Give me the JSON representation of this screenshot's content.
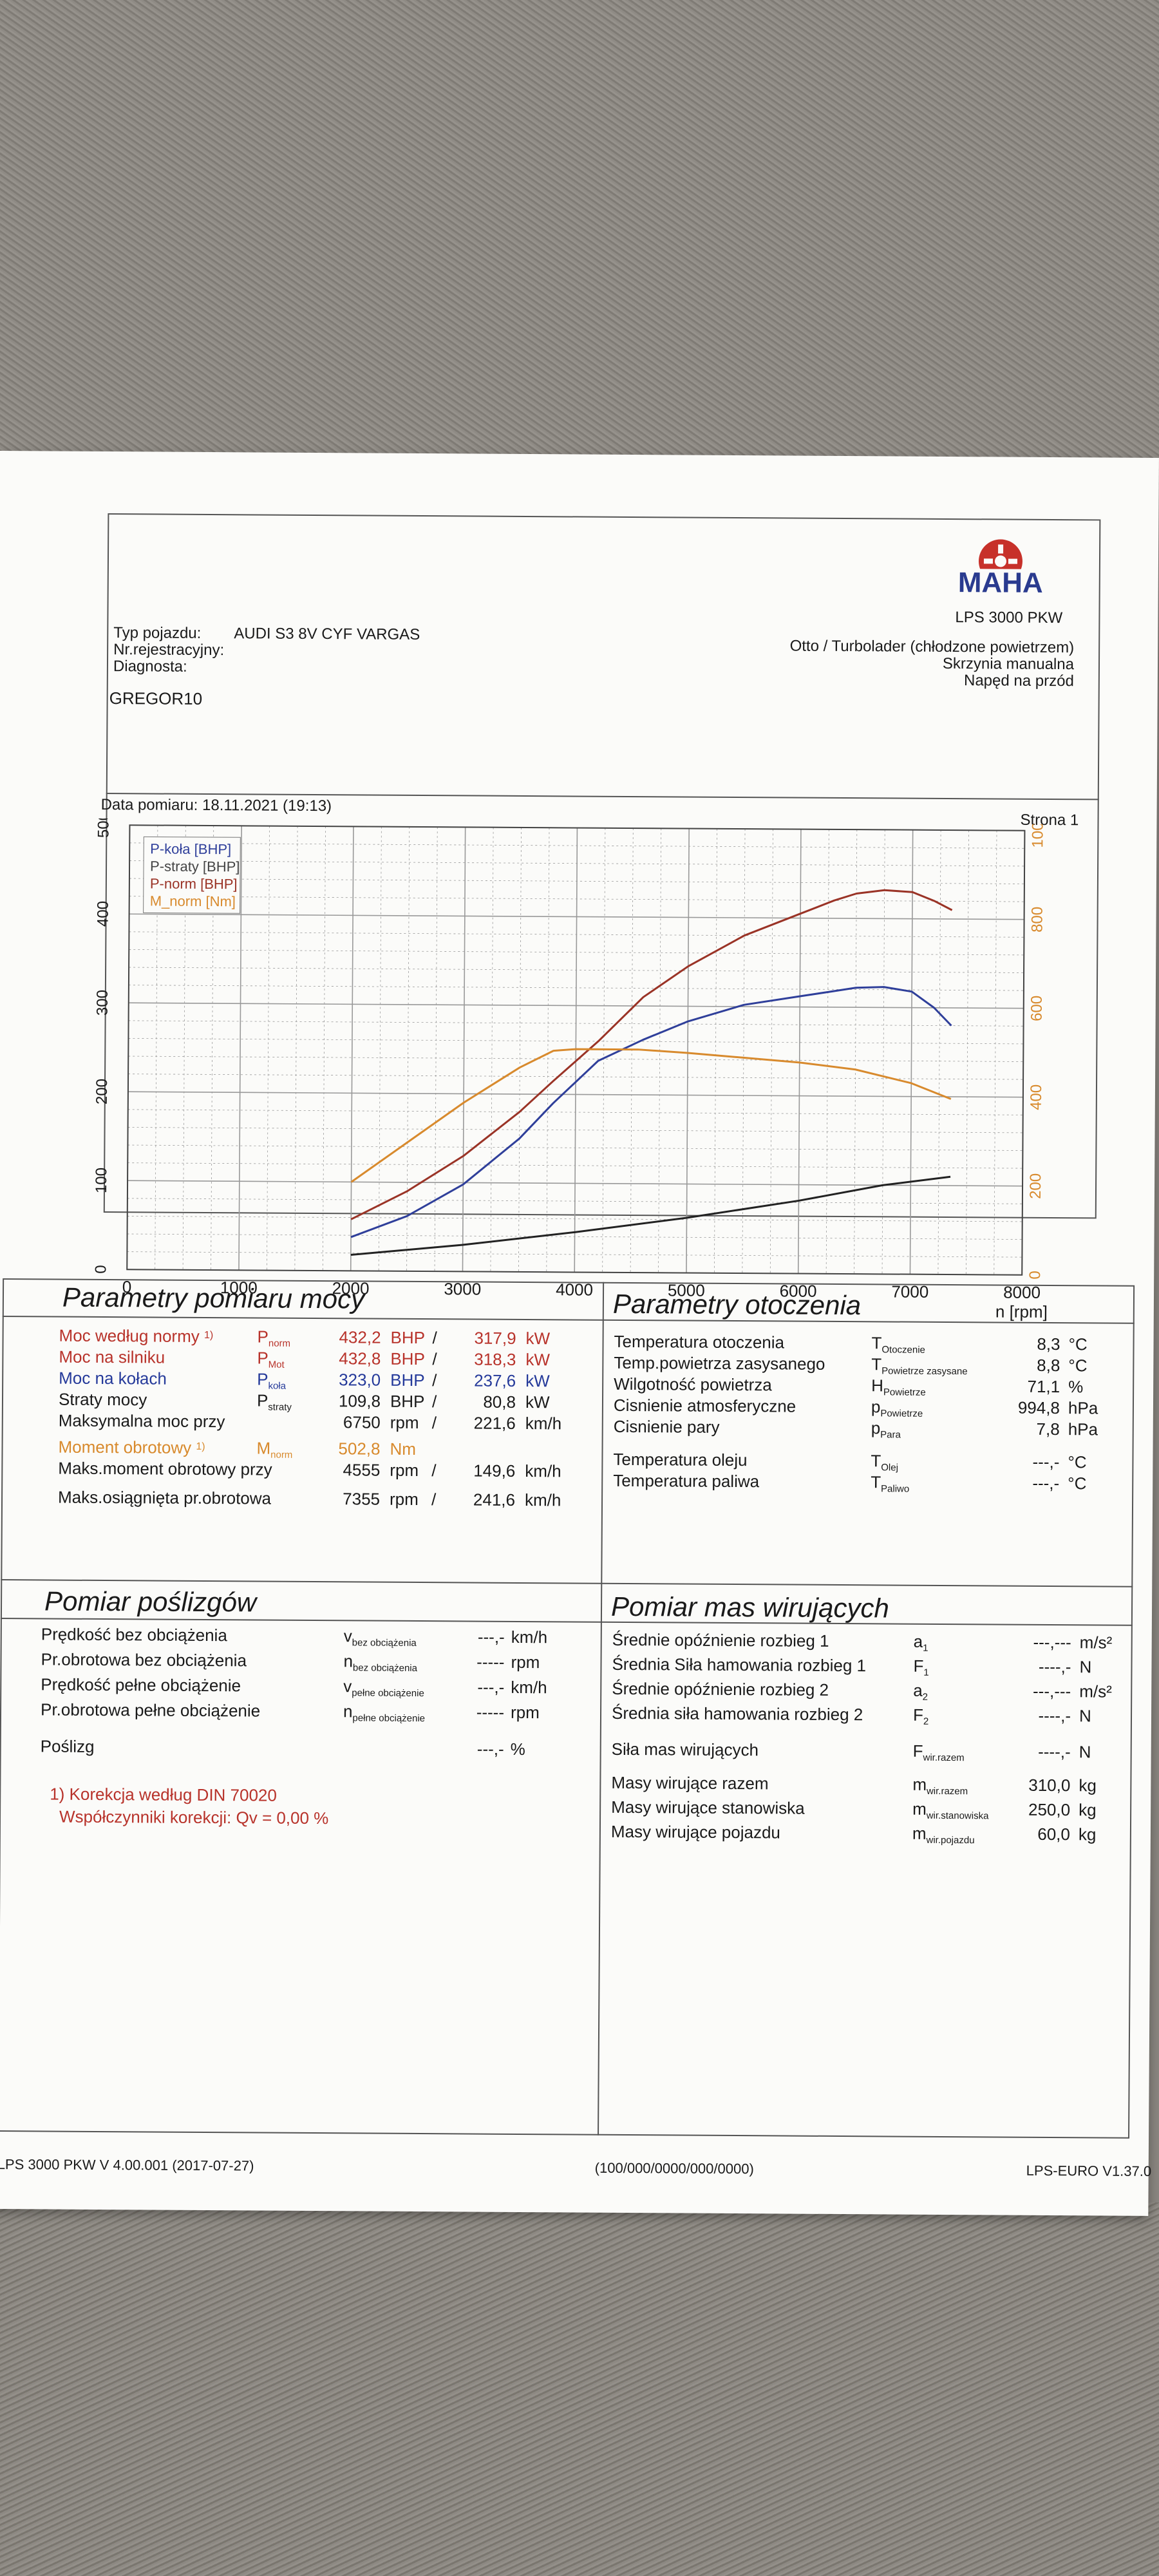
{
  "header": {
    "brand": "MAHA",
    "model": "LPS 3000 PKW",
    "vehicle_type_label": "Typ pojazdu:",
    "vehicle_type_value": "AUDI S3 8V CYF VARGAS",
    "registration_label": "Nr.rejestracyjny:",
    "diagnosis_label": "Diagnosta:",
    "engine_type": "Otto / Turbolader (chłodzone powietrzem)",
    "gearbox": "Skrzynia manualna",
    "drive": "Napęd na przód",
    "operator": "GREGOR10",
    "measurement_date": "Data pomiaru: 18.11.2021 (19:13)",
    "page": "Strona 1"
  },
  "chart_data": {
    "type": "line",
    "xlabel": "n [rpm]",
    "x_ticks": [
      "0",
      "1000",
      "2000",
      "3000",
      "4000",
      "5000",
      "6000",
      "7000",
      "8000"
    ],
    "y_left_ticks": [
      "0",
      "100",
      "200",
      "300",
      "400",
      "500"
    ],
    "y_right_ticks": [
      "0",
      "200",
      "400",
      "600",
      "800",
      "1000"
    ],
    "xlim": [
      0,
      8000
    ],
    "ylim_left": [
      0,
      500
    ],
    "ylim_right": [
      0,
      1000
    ],
    "grid": true,
    "legend_position": "top-left",
    "legend": [
      "P-koła [BHP]",
      "P-straty [BHP]",
      "P-norm [BHP]",
      "M_norm [Nm]"
    ],
    "series": [
      {
        "name": "P-koła [BHP]",
        "color": "#2f3f9a",
        "axis": "left",
        "x": [
          2000,
          2500,
          3000,
          3500,
          3800,
          4200,
          4600,
          5000,
          5500,
          6000,
          6300,
          6500,
          6750,
          7000,
          7200,
          7355
        ],
        "y": [
          38,
          62,
          98,
          150,
          190,
          238,
          262,
          283,
          302,
          312,
          318,
          322,
          323,
          318,
          300,
          280
        ]
      },
      {
        "name": "P-straty [BHP]",
        "color": "#222222",
        "axis": "left",
        "x": [
          2000,
          3000,
          4000,
          5000,
          6000,
          6750,
          7355
        ],
        "y": [
          18,
          30,
          45,
          62,
          82,
          100,
          110
        ]
      },
      {
        "name": "P-norm [BHP]",
        "color": "#9a3326",
        "axis": "left",
        "x": [
          2000,
          2500,
          3000,
          3500,
          3800,
          4200,
          4600,
          5000,
          5500,
          6000,
          6300,
          6500,
          6750,
          7000,
          7200,
          7355
        ],
        "y": [
          58,
          90,
          130,
          180,
          215,
          260,
          310,
          345,
          380,
          405,
          420,
          428,
          432,
          430,
          420,
          410
        ]
      },
      {
        "name": "M_norm [Nm]",
        "color": "#d88a2d",
        "axis": "right",
        "x": [
          2000,
          2500,
          3000,
          3500,
          3800,
          4000,
          4555,
          5000,
          5500,
          6000,
          6500,
          7000,
          7355
        ],
        "y": [
          200,
          290,
          380,
          460,
          498,
          502,
          502,
          495,
          485,
          475,
          460,
          430,
          395
        ]
      }
    ]
  },
  "measurement_params": {
    "title": "Parametry pomiaru mocy",
    "rows": [
      {
        "label": "Moc według normy",
        "note": "1)",
        "sym": "P",
        "sub": "norm",
        "val1": "432,2",
        "unit1": "BHP",
        "sep": "/",
        "val2": "317,9",
        "unit2": "kW",
        "color": "#b8332b"
      },
      {
        "label": "Moc na silniku",
        "note": "",
        "sym": "P",
        "sub": "Mot",
        "val1": "432,8",
        "unit1": "BHP",
        "sep": "/",
        "val2": "318,3",
        "unit2": "kW",
        "color": "#b8332b"
      },
      {
        "label": "Moc na kołach",
        "note": "",
        "sym": "P",
        "sub": "koła",
        "val1": "323,0",
        "unit1": "BHP",
        "sep": "/",
        "val2": "237,6",
        "unit2": "kW",
        "color": "#253a9a"
      },
      {
        "label": "Straty mocy",
        "note": "",
        "sym": "P",
        "sub": "straty",
        "val1": "109,8",
        "unit1": "BHP",
        "sep": "/",
        "val2": "80,8",
        "unit2": "kW",
        "color": "#1a1a1a"
      },
      {
        "label": "Maksymalna moc przy",
        "note": "",
        "sym": "",
        "sub": "",
        "val1": "6750",
        "unit1": "rpm",
        "sep": "/",
        "val2": "221,6",
        "unit2": "km/h",
        "color": "#1a1a1a"
      },
      {
        "label": "Moment obrotowy",
        "note": "1)",
        "sym": "M",
        "sub": "norm",
        "val1": "502,8",
        "unit1": "Nm",
        "sep": "",
        "val2": "",
        "unit2": "",
        "color": "#d88a2d"
      },
      {
        "label": "Maks.moment obrotowy przy",
        "note": "",
        "sym": "",
        "sub": "",
        "val1": "4555",
        "unit1": "rpm",
        "sep": "/",
        "val2": "149,6",
        "unit2": "km/h",
        "color": "#1a1a1a"
      },
      {
        "label": "Maks.osiągnięta pr.obrotowa",
        "note": "",
        "sym": "",
        "sub": "",
        "val1": "7355",
        "unit1": "rpm",
        "sep": "/",
        "val2": "241,6",
        "unit2": "km/h",
        "color": "#1a1a1a"
      }
    ],
    "correction_note": "1) Korekcja według DIN 70020",
    "correction_coeff": "Współczynniki korekcji: Qv = 0,00 %"
  },
  "ambient_params": {
    "title": "Parametry otoczenia",
    "rows": [
      {
        "label": "Temperatura otoczenia",
        "sym": "T",
        "sub": "Otoczenie",
        "val": "8,3",
        "unit": "°C"
      },
      {
        "label": "Temp.powietrza zasysanego",
        "sym": "T",
        "sub": "Powietrze zasysane",
        "val": "8,8",
        "unit": "°C"
      },
      {
        "label": "Wilgotność powietrza",
        "sym": "H",
        "sub": "Powietrze",
        "val": "71,1",
        "unit": "%"
      },
      {
        "label": "Cisnienie atmosferyczne",
        "sym": "p",
        "sub": "Powietrze",
        "val": "994,8",
        "unit": "hPa"
      },
      {
        "label": "Cisnienie pary",
        "sym": "p",
        "sub": "Para",
        "val": "7,8",
        "unit": "hPa"
      },
      {
        "label": "Temperatura oleju",
        "sym": "T",
        "sub": "Olej",
        "val": "---,-",
        "unit": "°C"
      },
      {
        "label": "Temperatura paliwa",
        "sym": "T",
        "sub": "Paliwo",
        "val": "---,-",
        "unit": "°C"
      }
    ]
  },
  "slip": {
    "title": "Pomiar poślizgów",
    "rows": [
      {
        "label": "Prędkość bez obciążenia",
        "sym": "v",
        "sub": "bez obciążenia",
        "val": "---,-",
        "unit": "km/h"
      },
      {
        "label": "Pr.obrotowa bez obciążenia",
        "sym": "n",
        "sub": "bez obciążenia",
        "val": "-----",
        "unit": "rpm"
      },
      {
        "label": "Prędkość pełne obciążenie",
        "sym": "v",
        "sub": "pełne obciążenie",
        "val": "---,-",
        "unit": "km/h"
      },
      {
        "label": "Pr.obrotowa pełne obciążenie",
        "sym": "n",
        "sub": "pełne obciążenie",
        "val": "-----",
        "unit": "rpm"
      },
      {
        "label": "Poślizg",
        "sym": "",
        "sub": "",
        "val": "---,-",
        "unit": "%"
      }
    ]
  },
  "rotating_mass": {
    "title": "Pomiar mas wirujących",
    "rows": [
      {
        "label": "Średnie opóźnienie rozbieg 1",
        "sym": "a",
        "sub": "1",
        "val": "---,---",
        "unit": "m/s²"
      },
      {
        "label": "Średnia Siła hamowania rozbieg 1",
        "sym": "F",
        "sub": "1",
        "val": "----,-",
        "unit": "N"
      },
      {
        "label": "Średnie opóźnienie rozbieg 2",
        "sym": "a",
        "sub": "2",
        "val": "---,---",
        "unit": "m/s²"
      },
      {
        "label": "Średnia siła hamowania rozbieg 2",
        "sym": "F",
        "sub": "2",
        "val": "----,-",
        "unit": "N"
      },
      {
        "label": "Siła mas wirujących",
        "sym": "F",
        "sub": "wir.razem",
        "val": "----,-",
        "unit": "N"
      },
      {
        "label": "Masy wirujące razem",
        "sym": "m",
        "sub": "wir.razem",
        "val": "310,0",
        "unit": "kg"
      },
      {
        "label": "Masy wirujące stanowiska",
        "sym": "m",
        "sub": "wir.stanowiska",
        "val": "250,0",
        "unit": "kg"
      },
      {
        "label": "Masy wirujące pojazdu",
        "sym": "m",
        "sub": "wir.pojazdu",
        "val": "60,0",
        "unit": "kg"
      }
    ]
  },
  "footer": {
    "left": "LPS 3000 PKW V 4.00.001 (2017-07-27)",
    "center": "(100/000/0000/000/0000)",
    "right": "LPS-EURO V1.37.0"
  }
}
